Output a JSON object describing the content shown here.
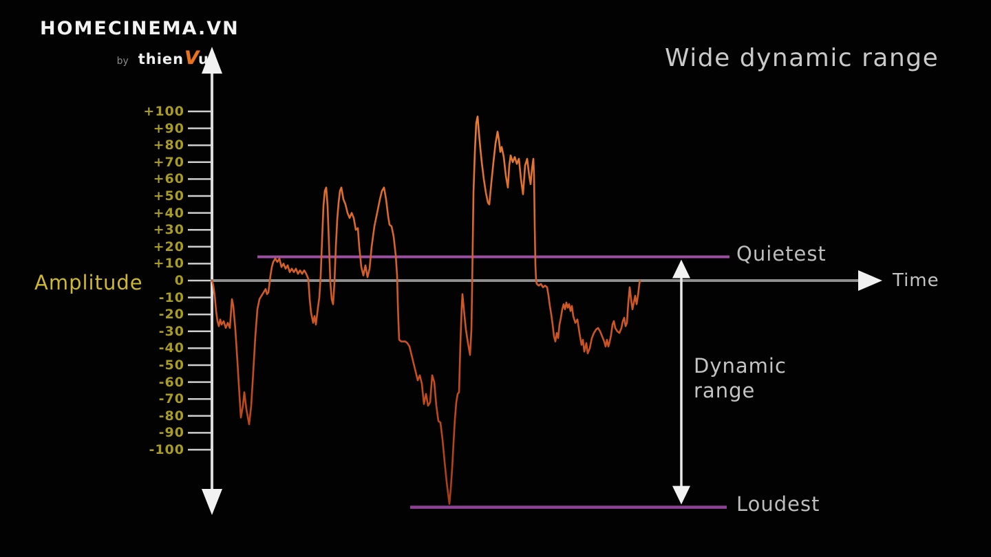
{
  "branding": {
    "name": "HOMECINEMA.VN",
    "by": "by",
    "thien": "thien",
    "v": "V",
    "u": "u",
    "reg": "®",
    "v_color": "#e8731f"
  },
  "header": {
    "title": "Wide dynamic range"
  },
  "chart": {
    "y_axis_label": "Amplitude",
    "x_axis_label": "Time",
    "quietest_label": "Quietest",
    "loudest_label": "Loudest",
    "dynamic_range_label": "Dynamic range",
    "colors": {
      "background": "#020202",
      "waveform_orange": "#d05a24",
      "level_line_purple": "#9b4fa0",
      "tick_text_yellow": "#a89c22",
      "amplitude_yellow": "#cdb92d",
      "label_gray": "#c4c4c4",
      "axis_white": "#dcdcdc",
      "x_axis_gray": "#8f8f8f"
    }
  },
  "chart_data": {
    "type": "line",
    "title": "Wide dynamic range",
    "xlabel": "Time",
    "ylabel": "Amplitude",
    "ylim": [
      -140,
      110
    ],
    "x_unit": "time (unlabeled, px from origin)",
    "grid": false,
    "yticks": [
      100,
      90,
      80,
      70,
      60,
      50,
      40,
      30,
      20,
      10,
      0,
      -10,
      -20,
      -30,
      -40,
      -50,
      -60,
      -70,
      -80,
      -90,
      -100
    ],
    "ytick_labels": [
      "+100",
      "+90",
      "+80",
      "+70",
      "+60",
      "+50",
      "+40",
      "+30",
      "+20",
      "+10",
      "0",
      "-10",
      "-20",
      "-30",
      "-40",
      "-50",
      "-60",
      "-70",
      "-80",
      "-90",
      "-100"
    ],
    "quietest_level": 14,
    "loudest_level": -134,
    "series": [
      {
        "name": "audio-waveform",
        "points": [
          [
            0,
            0
          ],
          [
            2,
            -3
          ],
          [
            4,
            -9
          ],
          [
            6,
            -18
          ],
          [
            8,
            -24
          ],
          [
            10,
            -27
          ],
          [
            12,
            -23
          ],
          [
            14,
            -26
          ],
          [
            17,
            -24
          ],
          [
            20,
            -28
          ],
          [
            23,
            -25
          ],
          [
            26,
            -28
          ],
          [
            29,
            -11
          ],
          [
            31,
            -15
          ],
          [
            34,
            -29
          ],
          [
            37,
            -48
          ],
          [
            40,
            -68
          ],
          [
            42,
            -81
          ],
          [
            45,
            -74
          ],
          [
            47,
            -66
          ],
          [
            50,
            -76
          ],
          [
            54,
            -85
          ],
          [
            57,
            -74
          ],
          [
            60,
            -54
          ],
          [
            63,
            -33
          ],
          [
            66,
            -17
          ],
          [
            69,
            -11
          ],
          [
            72,
            -9
          ],
          [
            75,
            -7
          ],
          [
            78,
            -5
          ],
          [
            80,
            -8
          ],
          [
            82,
            -7
          ],
          [
            85,
            3
          ],
          [
            87,
            8
          ],
          [
            89,
            11
          ],
          [
            92,
            13
          ],
          [
            95,
            11
          ],
          [
            98,
            13
          ],
          [
            101,
            8
          ],
          [
            104,
            10
          ],
          [
            107,
            7
          ],
          [
            110,
            9
          ],
          [
            113,
            5
          ],
          [
            116,
            7
          ],
          [
            119,
            5
          ],
          [
            122,
            7
          ],
          [
            125,
            4
          ],
          [
            128,
            6
          ],
          [
            131,
            4
          ],
          [
            134,
            6
          ],
          [
            137,
            4
          ],
          [
            140,
            1
          ],
          [
            142,
            -11
          ],
          [
            144,
            -19
          ],
          [
            147,
            -25
          ],
          [
            149,
            -21
          ],
          [
            151,
            -26
          ],
          [
            154,
            -16
          ],
          [
            156,
            -10
          ],
          [
            158,
            3
          ],
          [
            160,
            24
          ],
          [
            162,
            44
          ],
          [
            164,
            53
          ],
          [
            166,
            55
          ],
          [
            168,
            44
          ],
          [
            170,
            22
          ],
          [
            172,
            -1
          ],
          [
            174,
            -11
          ],
          [
            176,
            -14
          ],
          [
            178,
            -1
          ],
          [
            180,
            20
          ],
          [
            182,
            36
          ],
          [
            184,
            46
          ],
          [
            186,
            53
          ],
          [
            188,
            55
          ],
          [
            191,
            48
          ],
          [
            194,
            45
          ],
          [
            197,
            40
          ],
          [
            200,
            37
          ],
          [
            203,
            40
          ],
          [
            206,
            37
          ],
          [
            209,
            30
          ],
          [
            212,
            31
          ],
          [
            214,
            20
          ],
          [
            217,
            8
          ],
          [
            220,
            3
          ],
          [
            223,
            9
          ],
          [
            226,
            2
          ],
          [
            229,
            7
          ],
          [
            232,
            20
          ],
          [
            236,
            32
          ],
          [
            240,
            40
          ],
          [
            244,
            48
          ],
          [
            247,
            53
          ],
          [
            250,
            55
          ],
          [
            253,
            48
          ],
          [
            256,
            38
          ],
          [
            258,
            33
          ],
          [
            261,
            32
          ],
          [
            264,
            26
          ],
          [
            267,
            15
          ],
          [
            269,
            3
          ],
          [
            270,
            -13
          ],
          [
            271,
            -25
          ],
          [
            272,
            -35
          ],
          [
            275,
            -36
          ],
          [
            278,
            -36
          ],
          [
            281,
            -36
          ],
          [
            284,
            -37
          ],
          [
            287,
            -39
          ],
          [
            290,
            -44
          ],
          [
            293,
            -49
          ],
          [
            296,
            -54
          ],
          [
            299,
            -59
          ],
          [
            302,
            -56
          ],
          [
            305,
            -61
          ],
          [
            308,
            -73
          ],
          [
            311,
            -67
          ],
          [
            314,
            -74
          ],
          [
            317,
            -72
          ],
          [
            320,
            -56
          ],
          [
            323,
            -60
          ],
          [
            326,
            -74
          ],
          [
            329,
            -83
          ],
          [
            332,
            -84
          ],
          [
            335,
            -94
          ],
          [
            338,
            -107
          ],
          [
            341,
            -119
          ],
          [
            344,
            -129
          ],
          [
            345,
            -132
          ],
          [
            347,
            -123
          ],
          [
            349,
            -111
          ],
          [
            351,
            -96
          ],
          [
            353,
            -82
          ],
          [
            355,
            -72
          ],
          [
            357,
            -67
          ],
          [
            359,
            -66
          ],
          [
            361,
            -37
          ],
          [
            363,
            -15
          ],
          [
            364,
            -8
          ],
          [
            366,
            -17
          ],
          [
            369,
            -29
          ],
          [
            372,
            -37
          ],
          [
            375,
            -44
          ],
          [
            377,
            -29
          ],
          [
            378,
            -5
          ],
          [
            379,
            24
          ],
          [
            380,
            52
          ],
          [
            382,
            76
          ],
          [
            384,
            93
          ],
          [
            386,
            97
          ],
          [
            388,
            87
          ],
          [
            390,
            78
          ],
          [
            392,
            70
          ],
          [
            395,
            60
          ],
          [
            398,
            52
          ],
          [
            401,
            46
          ],
          [
            403,
            45
          ],
          [
            406,
            58
          ],
          [
            409,
            70
          ],
          [
            412,
            81
          ],
          [
            415,
            88
          ],
          [
            417,
            83
          ],
          [
            419,
            76
          ],
          [
            421,
            79
          ],
          [
            424,
            73
          ],
          [
            427,
            62
          ],
          [
            430,
            55
          ],
          [
            432,
            68
          ],
          [
            434,
            74
          ],
          [
            437,
            70
          ],
          [
            440,
            73
          ],
          [
            443,
            69
          ],
          [
            446,
            72
          ],
          [
            449,
            60
          ],
          [
            452,
            51
          ],
          [
            455,
            68
          ],
          [
            458,
            72
          ],
          [
            461,
            62
          ],
          [
            463,
            57
          ],
          [
            465,
            66
          ],
          [
            467,
            72
          ],
          [
            468,
            62
          ],
          [
            469,
            32
          ],
          [
            470,
            9
          ],
          [
            471,
            0
          ],
          [
            472,
            -2
          ],
          [
            475,
            -3
          ],
          [
            478,
            -2
          ],
          [
            481,
            -4
          ],
          [
            484,
            -3
          ],
          [
            487,
            -4
          ],
          [
            489,
            -9
          ],
          [
            491,
            -15
          ],
          [
            493,
            -20
          ],
          [
            495,
            -26
          ],
          [
            497,
            -33
          ],
          [
            499,
            -36
          ],
          [
            501,
            -31
          ],
          [
            503,
            -34
          ],
          [
            505,
            -26
          ],
          [
            507,
            -22
          ],
          [
            509,
            -17
          ],
          [
            511,
            -14
          ],
          [
            513,
            -17
          ],
          [
            515,
            -13
          ],
          [
            517,
            -16
          ],
          [
            519,
            -14
          ],
          [
            521,
            -18
          ],
          [
            523,
            -15
          ],
          [
            525,
            -21
          ],
          [
            528,
            -25
          ],
          [
            531,
            -23
          ],
          [
            534,
            -31
          ],
          [
            537,
            -38
          ],
          [
            539,
            -35
          ],
          [
            541,
            -42
          ],
          [
            544,
            -37
          ],
          [
            546,
            -43
          ],
          [
            549,
            -40
          ],
          [
            552,
            -34
          ],
          [
            555,
            -31
          ],
          [
            558,
            -29
          ],
          [
            561,
            -28
          ],
          [
            564,
            -30
          ],
          [
            567,
            -33
          ],
          [
            570,
            -36
          ],
          [
            572,
            -39
          ],
          [
            574,
            -35
          ],
          [
            576,
            -39
          ],
          [
            578,
            -36
          ],
          [
            580,
            -32
          ],
          [
            582,
            -26
          ],
          [
            584,
            -24
          ],
          [
            586,
            -28
          ],
          [
            589,
            -30
          ],
          [
            592,
            -31
          ],
          [
            595,
            -28
          ],
          [
            597,
            -24
          ],
          [
            599,
            -22
          ],
          [
            601,
            -27
          ],
          [
            603,
            -25
          ],
          [
            605,
            -13
          ],
          [
            607,
            -4
          ],
          [
            609,
            -11
          ],
          [
            611,
            -17
          ],
          [
            613,
            -13
          ],
          [
            615,
            -9
          ],
          [
            617,
            -14
          ],
          [
            619,
            -9
          ],
          [
            621,
            -2
          ],
          [
            622,
            0
          ]
        ]
      }
    ],
    "annotations": [
      {
        "text": "Quietest",
        "level": 14
      },
      {
        "text": "Loudest",
        "level": -134
      },
      {
        "text": "Dynamic range",
        "between": [
          14,
          -134
        ]
      }
    ],
    "legend": false
  }
}
